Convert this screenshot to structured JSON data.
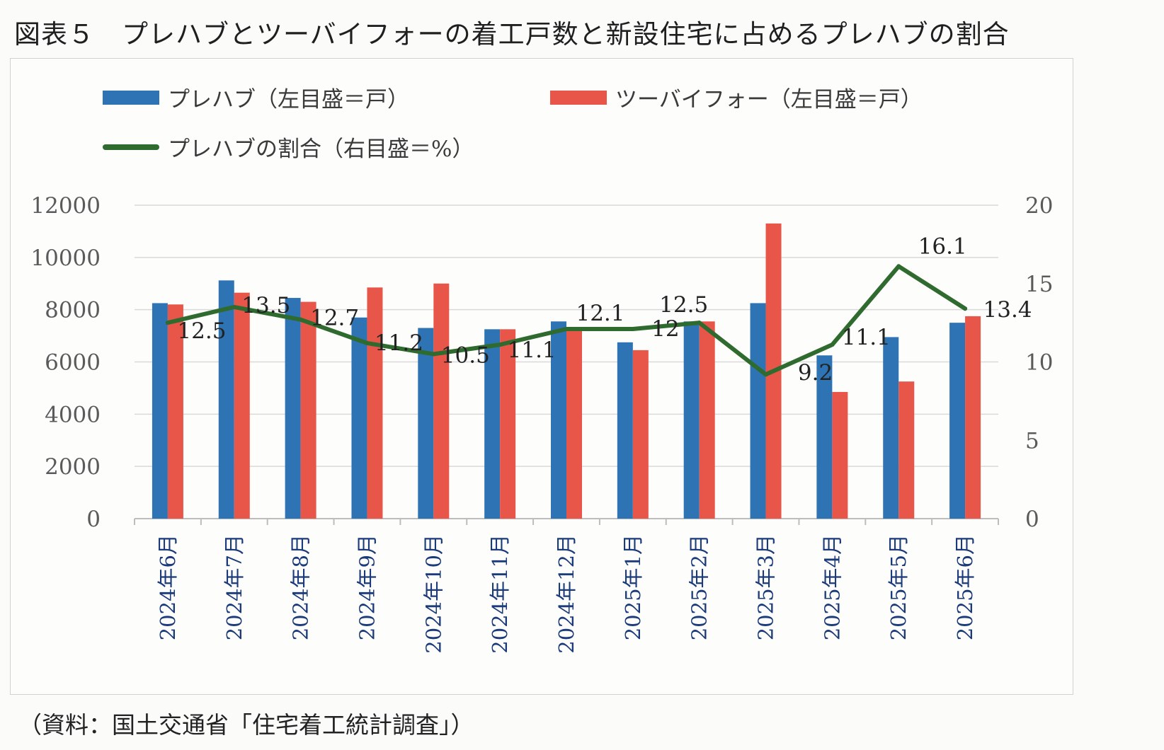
{
  "title": "図表５　プレハブとツーバイフォーの着工戸数と新設住宅に占めるプレハブの割合",
  "footer": "（資料：国土交通省「住宅着工統計調査」）",
  "colors": {
    "prefab": "#2e74b5",
    "twobyfour": "#e8564a",
    "share": "#2f6b2f"
  },
  "chart_data": {
    "type": "bar",
    "categories": [
      "2024年6月",
      "2024年7月",
      "2024年8月",
      "2024年9月",
      "2024年10月",
      "2024年11月",
      "2024年12月",
      "2025年1月",
      "2025年2月",
      "2025年3月",
      "2025年4月",
      "2025年5月",
      "2025年6月"
    ],
    "series": [
      {
        "name": "プレハブ（左目盛＝戸）",
        "type": "bar",
        "axis": "left",
        "values": [
          8250,
          9120,
          8450,
          7700,
          7300,
          7250,
          7550,
          6750,
          7550,
          8250,
          6250,
          6950,
          7500
        ]
      },
      {
        "name": "ツーバイフォー（左目盛＝戸）",
        "type": "bar",
        "axis": "left",
        "values": [
          8200,
          8650,
          8300,
          8850,
          9000,
          7250,
          7300,
          6450,
          7550,
          11300,
          4850,
          5250,
          7750
        ]
      },
      {
        "name": "プレハブの割合（右目盛＝%）",
        "type": "line",
        "axis": "right",
        "values": [
          12.5,
          13.5,
          12.7,
          11.2,
          10.5,
          11.1,
          12.1,
          12.1,
          12.5,
          9.2,
          11.1,
          16.1,
          13.4
        ],
        "labels": [
          "12.5",
          "13.5",
          "12.7",
          "11.2",
          "10.5",
          "11.1",
          "12.1",
          "12",
          "12.5",
          "9.2",
          "11.1",
          "16.1",
          "13.4"
        ]
      }
    ],
    "y_left": {
      "ticks": [
        "12000",
        "10000",
        "8000",
        "6000",
        "4000",
        "2000",
        "0"
      ],
      "min": 0,
      "max": 12000
    },
    "y_right": {
      "ticks": [
        "20",
        "15",
        "10",
        "5",
        "0"
      ],
      "min": 0,
      "max": 20
    },
    "legend_position": "top-left",
    "grid": true
  }
}
